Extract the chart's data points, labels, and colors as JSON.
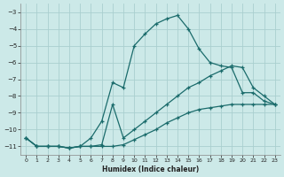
{
  "xlabel": "Humidex (Indice chaleur)",
  "bg_color": "#cce9e8",
  "grid_color": "#aacfcf",
  "line_color": "#1a6b6b",
  "xlim": [
    -0.5,
    23.5
  ],
  "ylim": [
    -11.5,
    -2.5
  ],
  "yticks": [
    -3,
    -4,
    -5,
    -6,
    -7,
    -8,
    -9,
    -10,
    -11
  ],
  "xticks": [
    0,
    1,
    2,
    3,
    4,
    5,
    6,
    7,
    8,
    9,
    10,
    11,
    12,
    13,
    14,
    15,
    16,
    17,
    18,
    19,
    20,
    21,
    22,
    23
  ],
  "line1_x": [
    0,
    1,
    2,
    3,
    4,
    5,
    6,
    7,
    8,
    9,
    10,
    11,
    12,
    13,
    14,
    15,
    16,
    17,
    18,
    19,
    20,
    21,
    22,
    23
  ],
  "line1_y": [
    -10.5,
    -11.0,
    -11.0,
    -11.0,
    -11.1,
    -11.0,
    -11.0,
    -11.0,
    -11.0,
    -10.9,
    -10.6,
    -10.3,
    -10.0,
    -9.6,
    -9.3,
    -9.0,
    -8.8,
    -8.7,
    -8.6,
    -8.5,
    -8.5,
    -8.5,
    -8.5,
    -8.5
  ],
  "line2_x": [
    0,
    1,
    2,
    3,
    4,
    5,
    6,
    7,
    8,
    9,
    10,
    11,
    12,
    13,
    14,
    15,
    16,
    17,
    18,
    19,
    20,
    21,
    22,
    23
  ],
  "line2_y": [
    -10.5,
    -11.0,
    -11.0,
    -11.0,
    -11.1,
    -11.0,
    -10.5,
    -9.5,
    -7.2,
    -7.5,
    -5.0,
    -4.3,
    -3.7,
    -3.4,
    -3.2,
    -4.0,
    -5.2,
    -6.0,
    -6.2,
    -6.3,
    -7.8,
    -7.8,
    -8.3,
    -8.5
  ],
  "line3_x": [
    0,
    1,
    2,
    3,
    4,
    5,
    6,
    7,
    8,
    9,
    10,
    11,
    12,
    13,
    14,
    15,
    16,
    17,
    18,
    19,
    20,
    21,
    22,
    23
  ],
  "line3_y": [
    -10.5,
    -11.0,
    -11.0,
    -11.0,
    -11.1,
    -11.0,
    -11.0,
    -10.9,
    -8.5,
    -10.5,
    -10.0,
    -9.5,
    -9.0,
    -8.5,
    -8.0,
    -7.5,
    -7.2,
    -6.8,
    -6.5,
    -6.2,
    -6.3,
    -7.5,
    -8.0,
    -8.5
  ]
}
